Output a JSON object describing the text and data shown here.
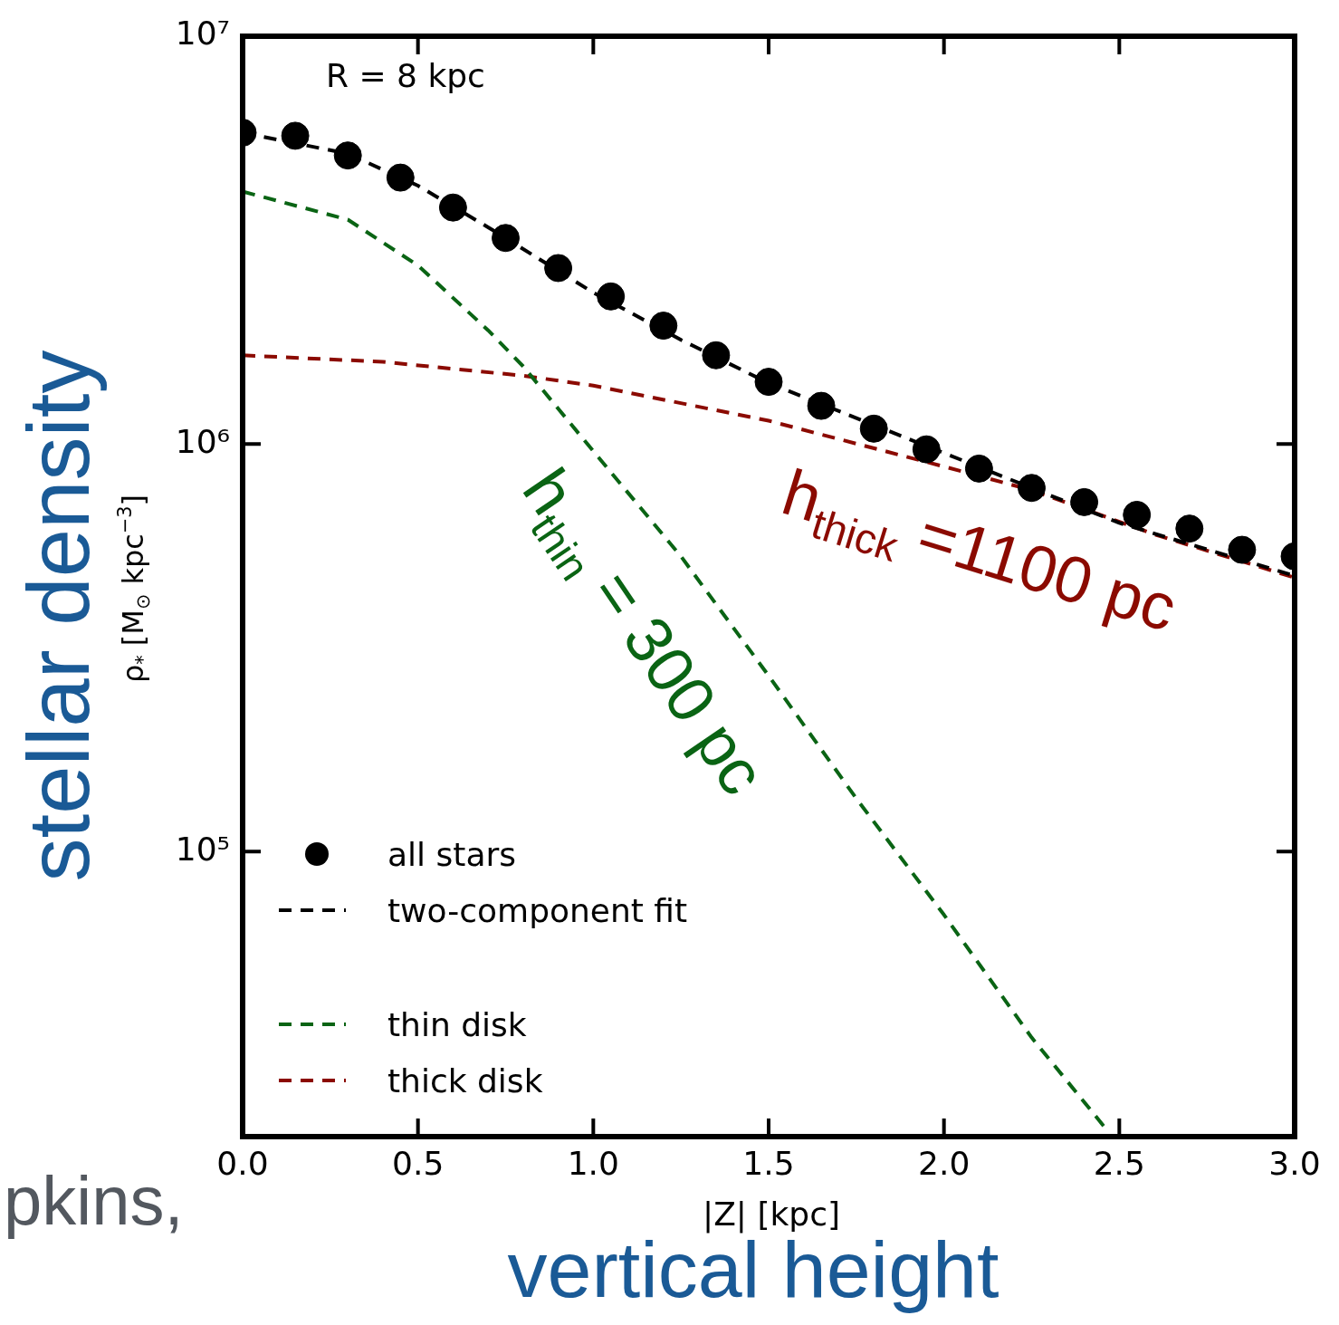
{
  "chart_data": {
    "type": "line",
    "xlabel": "|Z| [kpc]",
    "ylabel": "ρ$_{*}$ [M$_{⊙}$ kpc$^{−3}$]",
    "log": "y",
    "xlim": [
      0,
      3
    ],
    "ylim": [
      20000,
      10000000
    ],
    "xticks": [
      {
        "value": 0,
        "label": "0.0"
      },
      {
        "value": 0.5,
        "label": "0.5"
      },
      {
        "value": 1,
        "label": "1.0"
      },
      {
        "value": 1.5,
        "label": "1.5"
      },
      {
        "value": 2,
        "label": "2.0"
      },
      {
        "value": 2.5,
        "label": "2.5"
      },
      {
        "value": 3,
        "label": "3.0"
      }
    ],
    "yticks": [
      {
        "value": 100000,
        "label": "10⁵"
      },
      {
        "value": 1000000,
        "label": "10⁶"
      },
      {
        "value": 10000000,
        "label": "10⁷"
      }
    ],
    "grid": false,
    "legend": "bottom left",
    "line_style": "dashed",
    "series": [
      {
        "name": "all stars",
        "type": "scatter",
        "marker": "circle",
        "color": "#000000",
        "x": [
          0,
          0.15,
          0.3,
          0.45,
          0.6,
          0.75,
          0.9,
          1.05,
          1.2,
          1.35,
          1.5,
          1.65,
          1.8,
          1.95,
          2.1,
          2.25,
          2.4,
          2.55,
          2.7,
          2.85,
          3.0
        ],
        "values": [
          5800000,
          5700000,
          5100000,
          4500000,
          3800000,
          3200000,
          2700000,
          2300000,
          1950000,
          1650000,
          1420000,
          1240000,
          1090000,
          970000,
          870000,
          780000,
          720000,
          670000,
          620000,
          550000,
          530000
        ]
      },
      {
        "name": "two-component fit",
        "type": "line",
        "color": "#000000",
        "x": [
          0,
          0.3,
          0.5,
          0.7,
          1.0,
          1.25,
          1.5,
          2.0,
          2.5,
          3.0
        ],
        "values": [
          5800000,
          5150000,
          4300000,
          3400000,
          2350000,
          1800000,
          1410000,
          950000,
          640000,
          475000
        ]
      },
      {
        "name": "thin disk",
        "type": "line",
        "color": "#0a6414",
        "x": [
          0,
          0.3,
          0.5,
          0.7,
          0.8,
          1.0,
          1.25,
          1.5,
          1.75,
          2.0,
          2.25,
          2.46
        ],
        "values": [
          4160000,
          3550000,
          2740000,
          1900000,
          1550000,
          960000,
          530000,
          270000,
          135000,
          70000,
          35000,
          21000
        ]
      },
      {
        "name": "thick disk",
        "type": "line",
        "color": "#8b0a00",
        "x": [
          0,
          0.4,
          0.8,
          1.0,
          1.5,
          2.0,
          2.25,
          2.6,
          3.0
        ],
        "values": [
          1650000,
          1590000,
          1470000,
          1390000,
          1140000,
          880000,
          770000,
          600000,
          470000
        ]
      }
    ],
    "annotations": [
      "R = 8 kpc",
      "h$_{thin}$ = 300 pc",
      "h$_{thick}$ =1100 pc",
      "stellar density",
      "vertical height",
      "pkins,"
    ]
  }
}
